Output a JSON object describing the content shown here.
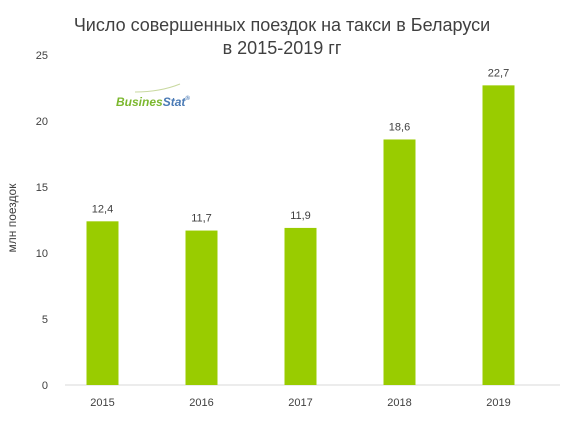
{
  "chart_data": {
    "type": "bar",
    "title_lines": [
      "Число совершенных поездок на такси в Беларуси",
      "в 2015-2019 гг"
    ],
    "ylabel": "млн поездок",
    "xlabel": "",
    "categories": [
      "2015",
      "2016",
      "2017",
      "2018",
      "2019"
    ],
    "values": [
      12.4,
      11.7,
      11.9,
      18.6,
      22.7
    ],
    "value_labels": [
      "12,4",
      "11,7",
      "11,9",
      "18,6",
      "22,7"
    ],
    "ylim": [
      0,
      25
    ],
    "yticks": [
      0,
      5,
      10,
      15,
      20,
      25
    ],
    "grid": false,
    "bar_color": "#99cc00"
  },
  "logo": {
    "part1": "Busines",
    "part2": "Stat",
    "mark": "®",
    "color_green": "#7cb82f",
    "color_blue": "#4a7ab5"
  }
}
